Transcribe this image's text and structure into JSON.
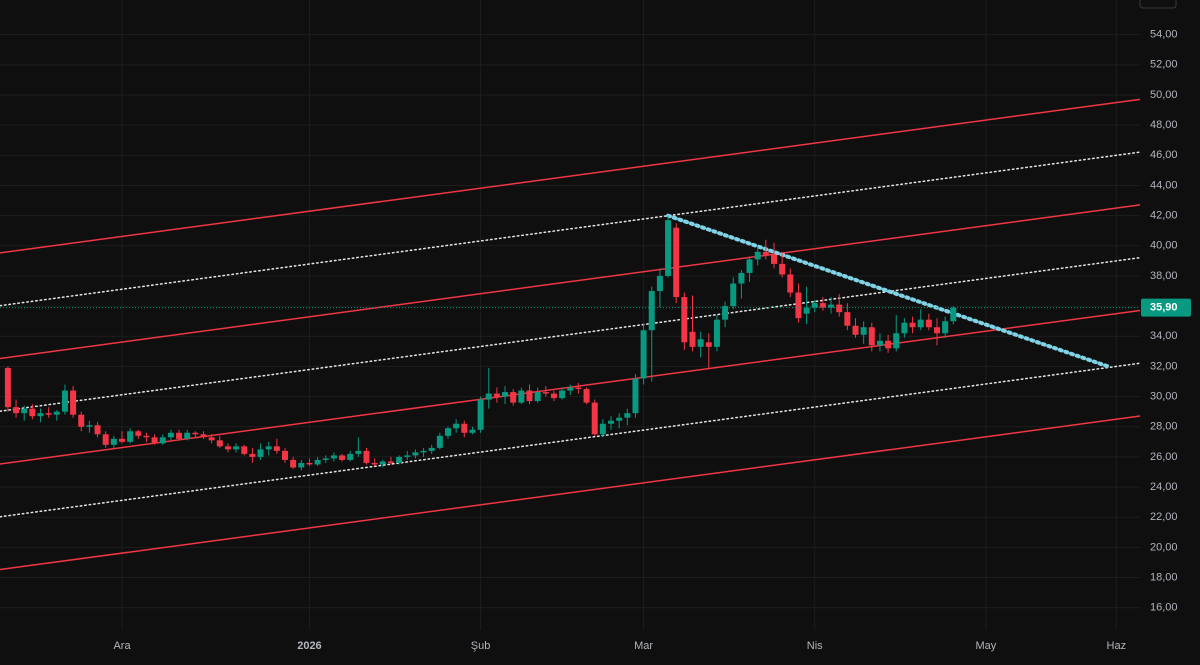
{
  "chart_data": {
    "type": "candlestick",
    "categories": [
      null,
      null,
      null,
      null,
      null,
      null,
      null,
      null,
      null,
      null,
      null,
      null,
      null,
      null,
      "Ara",
      null,
      null,
      null,
      null,
      null,
      null,
      null,
      null,
      null,
      null,
      null,
      null,
      null,
      null,
      null,
      null,
      null,
      null,
      null,
      null,
      null,
      null,
      "2026",
      null,
      null,
      null,
      null,
      null,
      null,
      null,
      null,
      null,
      null,
      null,
      null,
      null,
      null,
      null,
      null,
      null,
      null,
      null,
      null,
      "Şub",
      null,
      null,
      null,
      null,
      null,
      null,
      null,
      null,
      null,
      null,
      null,
      null,
      null,
      null,
      null,
      null,
      null,
      null,
      null,
      "Mar",
      null,
      null,
      null,
      null,
      null,
      null,
      null,
      null,
      null,
      null,
      null,
      null,
      null,
      null,
      null,
      null,
      null,
      null,
      null,
      null,
      "Nis",
      null,
      null,
      null,
      null,
      null,
      null,
      null,
      null,
      null,
      null,
      null,
      null,
      null,
      null,
      null,
      null,
      null,
      null,
      null,
      null,
      "May",
      null,
      null,
      null,
      null,
      null,
      null,
      null,
      null,
      null,
      null,
      null,
      null,
      null,
      null,
      null,
      "Haz"
    ],
    "open": [
      31.9,
      29.3,
      28.9,
      29.2,
      28.7,
      28.9,
      28.8,
      29.0,
      30.4,
      28.8,
      28.0,
      28.1,
      27.5,
      26.8,
      27.2,
      27.0,
      27.7,
      27.4,
      27.3,
      26.9,
      27.3,
      27.6,
      27.2,
      27.6,
      27.5,
      27.3,
      27.1,
      26.7,
      26.5,
      26.7,
      26.2,
      26.0,
      26.5,
      26.7,
      26.4,
      25.8,
      25.3,
      25.6,
      25.5,
      25.8,
      25.9,
      26.1,
      25.8,
      26.2,
      26.4,
      25.6,
      25.5,
      25.7,
      25.6,
      26.0,
      26.1,
      26.3,
      26.4,
      26.6,
      27.4,
      27.9,
      28.2,
      27.6,
      27.8,
      29.8,
      30.2,
      30.0,
      30.3,
      29.6,
      30.4,
      29.7,
      30.3,
      30.2,
      29.9,
      30.4,
      30.6,
      30.5,
      29.6,
      27.5,
      28.2,
      28.4,
      28.6,
      28.9,
      31.2,
      34.4,
      37.0,
      38.0,
      41.2,
      36.6,
      34.3,
      33.3,
      33.6,
      33.3,
      35.1,
      36.0,
      37.5,
      38.2,
      39.1,
      39.6,
      39.4,
      38.8,
      38.1,
      36.9,
      35.5,
      35.9,
      36.2,
      35.9,
      36.1,
      35.6,
      34.7,
      34.1,
      34.6,
      33.4,
      33.7,
      33.2,
      34.2,
      34.9,
      34.6,
      35.1,
      34.6,
      34.2,
      35.0,
      null,
      null,
      null,
      null,
      null,
      null,
      null,
      null,
      null,
      null,
      null,
      null,
      null,
      null,
      null,
      null,
      null,
      null,
      null,
      null
    ],
    "high": [
      32.0,
      29.8,
      29.4,
      29.5,
      29.2,
      29.3,
      29.1,
      30.8,
      30.7,
      29.0,
      28.4,
      28.3,
      27.7,
      27.4,
      27.7,
      27.9,
      27.8,
      27.6,
      27.5,
      27.5,
      27.8,
      27.8,
      27.8,
      27.7,
      27.7,
      27.5,
      27.4,
      26.9,
      26.9,
      26.8,
      26.6,
      26.9,
      27.0,
      27.2,
      26.6,
      26.0,
      25.8,
      25.9,
      26.0,
      26.1,
      26.3,
      26.2,
      26.4,
      27.3,
      26.6,
      25.9,
      25.8,
      26.0,
      26.1,
      26.4,
      26.5,
      26.6,
      26.8,
      27.6,
      28.0,
      28.5,
      28.4,
      28.0,
      30.0,
      31.9,
      30.6,
      30.7,
      30.5,
      30.6,
      30.8,
      30.6,
      30.7,
      30.4,
      30.6,
      30.8,
      30.9,
      30.6,
      29.8,
      28.5,
      28.7,
      28.9,
      29.2,
      31.5,
      34.8,
      37.3,
      38.5,
      42.0,
      41.5,
      36.9,
      36.7,
      34.3,
      34.2,
      35.4,
      36.3,
      37.9,
      38.4,
      39.3,
      40.0,
      40.4,
      40.2,
      39.6,
      38.5,
      37.5,
      37.3,
      36.4,
      36.6,
      36.6,
      36.8,
      36.2,
      35.2,
      35.0,
      34.9,
      34.2,
      34.1,
      35.4,
      35.2,
      35.3,
      35.8,
      35.5,
      35.2,
      35.3,
      36.0,
      null,
      null,
      null,
      null,
      null,
      null,
      null,
      null,
      null,
      null,
      null,
      null,
      null,
      null,
      null,
      null,
      null,
      null,
      null,
      null
    ],
    "low": [
      29.0,
      28.6,
      28.4,
      28.5,
      28.3,
      28.6,
      28.4,
      28.8,
      28.6,
      27.7,
      27.6,
      27.3,
      26.6,
      26.6,
      26.9,
      26.9,
      27.2,
      27.0,
      26.8,
      26.8,
      27.1,
      27.1,
      27.1,
      27.3,
      27.2,
      26.9,
      26.6,
      26.3,
      26.3,
      26.1,
      25.6,
      25.8,
      26.1,
      26.2,
      25.6,
      25.2,
      25.1,
      25.4,
      25.4,
      25.6,
      25.7,
      25.7,
      25.7,
      26.0,
      25.5,
      25.4,
      25.3,
      25.5,
      25.5,
      25.8,
      25.9,
      26.0,
      26.2,
      26.5,
      27.2,
      27.6,
      27.3,
      27.5,
      27.6,
      29.2,
      29.6,
      29.5,
      29.4,
      29.5,
      29.5,
      29.6,
      30.0,
      29.7,
      29.8,
      30.1,
      30.2,
      29.5,
      27.4,
      27.3,
      27.8,
      27.9,
      28.1,
      28.6,
      30.8,
      31.0,
      35.9,
      37.9,
      36.2,
      33.1,
      33.0,
      32.6,
      31.8,
      33.0,
      34.6,
      35.8,
      36.5,
      37.6,
      38.7,
      39.1,
      38.5,
      37.9,
      36.6,
      34.9,
      34.8,
      35.6,
      35.7,
      35.5,
      35.3,
      34.4,
      33.9,
      33.5,
      33.0,
      33.0,
      32.9,
      33.0,
      33.9,
      34.2,
      34.4,
      34.4,
      33.4,
      33.9,
      34.8,
      null,
      null,
      null,
      null,
      null,
      null,
      null,
      null,
      null,
      null,
      null,
      null,
      null,
      null,
      null,
      null,
      null,
      null,
      null,
      null
    ],
    "close": [
      29.3,
      28.9,
      29.2,
      28.7,
      28.9,
      28.8,
      29.0,
      30.4,
      28.8,
      28.0,
      28.1,
      27.5,
      26.8,
      27.2,
      27.0,
      27.7,
      27.4,
      27.3,
      26.9,
      27.3,
      27.6,
      27.2,
      27.6,
      27.5,
      27.3,
      27.1,
      26.7,
      26.5,
      26.7,
      26.2,
      26.0,
      26.5,
      26.7,
      26.4,
      25.8,
      25.3,
      25.6,
      25.5,
      25.8,
      25.9,
      26.1,
      25.8,
      26.2,
      26.4,
      25.6,
      25.5,
      25.7,
      25.6,
      26.0,
      26.1,
      26.3,
      26.4,
      26.6,
      27.4,
      27.9,
      28.2,
      27.6,
      27.8,
      29.8,
      30.2,
      30.0,
      30.3,
      29.6,
      30.4,
      29.7,
      30.3,
      30.2,
      29.9,
      30.4,
      30.6,
      30.5,
      29.6,
      27.5,
      28.2,
      28.4,
      28.6,
      28.9,
      31.2,
      34.4,
      37.0,
      38.0,
      41.7,
      36.6,
      33.6,
      33.3,
      33.8,
      33.3,
      35.1,
      36.0,
      37.5,
      38.2,
      39.1,
      39.6,
      39.4,
      38.8,
      38.1,
      36.9,
      35.2,
      35.9,
      36.2,
      35.9,
      36.1,
      35.6,
      34.7,
      34.1,
      34.6,
      33.4,
      33.7,
      33.2,
      34.2,
      34.9,
      34.6,
      35.1,
      34.6,
      34.2,
      35.0,
      35.9,
      null,
      null,
      null,
      null,
      null,
      null,
      null,
      null,
      null,
      null,
      null,
      null,
      null,
      null,
      null,
      null,
      null,
      null,
      null,
      null
    ],
    "up_color": "#089981",
    "down_color": "#f23645",
    "ylim": [
      12.2,
      56.3
    ],
    "yticks": [
      {
        "value": 16,
        "label": "16,00"
      },
      {
        "value": 18,
        "label": "18,00"
      },
      {
        "value": 20,
        "label": "20,00"
      },
      {
        "value": 22,
        "label": "22,00"
      },
      {
        "value": 24,
        "label": "24,00"
      },
      {
        "value": 26,
        "label": "26,00"
      },
      {
        "value": 28,
        "label": "28,00"
      },
      {
        "value": 30,
        "label": "30,00"
      },
      {
        "value": 32,
        "label": "32,00"
      },
      {
        "value": 34,
        "label": "34,00"
      },
      {
        "value": 36,
        "label": "36,00"
      },
      {
        "value": 38,
        "label": "38,00"
      },
      {
        "value": 40,
        "label": "40,00"
      },
      {
        "value": 42,
        "label": "42,00"
      },
      {
        "value": 44,
        "label": "44,00"
      },
      {
        "value": 46,
        "label": "46,00"
      },
      {
        "value": 48,
        "label": "48,00"
      },
      {
        "value": 50,
        "label": "50,00"
      },
      {
        "value": 52,
        "label": "52,00"
      },
      {
        "value": 54,
        "label": "54,00"
      }
    ],
    "grid": true,
    "last_price": {
      "value": 35.9,
      "label": "35,90"
    },
    "lines": [
      {
        "style": "solid",
        "color": "#f23645",
        "extend": true,
        "x": [
          0,
          136
        ],
        "values": [
          39.6,
          49.5
        ]
      },
      {
        "style": "dotted",
        "color": "#e6e6e6",
        "extend": true,
        "x": [
          0,
          136
        ],
        "values": [
          36.1,
          46.0
        ]
      },
      {
        "style": "solid",
        "color": "#f23645",
        "extend": true,
        "x": [
          0,
          136
        ],
        "values": [
          32.6,
          42.5
        ]
      },
      {
        "style": "dotted",
        "color": "#e6e6e6",
        "extend": true,
        "x": [
          0,
          136
        ],
        "values": [
          29.1,
          39.0
        ]
      },
      {
        "style": "solid",
        "color": "#f23645",
        "extend": true,
        "x": [
          0,
          136
        ],
        "values": [
          25.6,
          35.5
        ]
      },
      {
        "style": "dotted",
        "color": "#e6e6e6",
        "extend": true,
        "x": [
          0,
          136
        ],
        "values": [
          22.1,
          32.0
        ]
      },
      {
        "style": "solid",
        "color": "#f23645",
        "extend": true,
        "x": [
          0,
          136
        ],
        "values": [
          18.6,
          28.5
        ]
      },
      {
        "style": "dotted",
        "color": "#7fd3e6",
        "extend": false,
        "x": [
          81,
          135
        ],
        "values": [
          42.0,
          32.0
        ]
      }
    ]
  }
}
